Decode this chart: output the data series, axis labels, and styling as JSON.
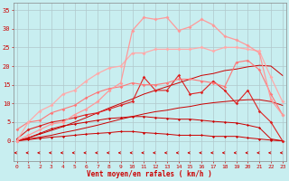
{
  "xlabel": "Vent moyen/en rafales ( km/h )",
  "background_color": "#c8eef0",
  "grid_color": "#b0c8cc",
  "x_values": [
    0,
    1,
    2,
    3,
    4,
    5,
    6,
    7,
    8,
    9,
    10,
    11,
    12,
    13,
    14,
    15,
    16,
    17,
    18,
    19,
    20,
    21,
    22,
    23
  ],
  "series": [
    {
      "color": "#cc0000",
      "linewidth": 0.7,
      "marker": "D",
      "markersize": 1.5,
      "values": [
        0,
        0.3,
        0.7,
        1.0,
        1.2,
        1.5,
        1.8,
        2.0,
        2.2,
        2.5,
        2.5,
        2.2,
        2.0,
        1.8,
        1.5,
        1.5,
        1.5,
        1.2,
        1.2,
        1.2,
        0.8,
        0.5,
        0.2,
        0
      ]
    },
    {
      "color": "#cc0000",
      "linewidth": 0.7,
      "marker": "D",
      "markersize": 1.5,
      "values": [
        0,
        0.8,
        2.0,
        3.2,
        4.0,
        4.5,
        5.0,
        5.5,
        6.0,
        6.2,
        6.5,
        6.5,
        6.2,
        6.0,
        5.8,
        5.8,
        5.5,
        5.2,
        5.0,
        4.8,
        4.2,
        3.5,
        0.5,
        0
      ]
    },
    {
      "color": "#cc0000",
      "linewidth": 0.7,
      "marker": null,
      "markersize": 0,
      "values": [
        0,
        0.5,
        1.0,
        1.5,
        2.2,
        2.8,
        3.5,
        4.2,
        5.0,
        5.8,
        6.5,
        7.2,
        7.8,
        8.2,
        8.8,
        9.2,
        9.8,
        10.2,
        10.5,
        10.8,
        11.0,
        11.0,
        10.5,
        9.5
      ]
    },
    {
      "color": "#cc0000",
      "linewidth": 0.7,
      "marker": null,
      "markersize": 0,
      "values": [
        0,
        0.8,
        1.8,
        2.8,
        3.8,
        5.0,
        6.2,
        7.5,
        8.8,
        10.0,
        11.2,
        12.5,
        13.5,
        14.5,
        15.5,
        16.5,
        17.5,
        18.0,
        18.8,
        19.2,
        19.8,
        20.2,
        20.0,
        17.5
      ]
    },
    {
      "color": "#dd2222",
      "linewidth": 0.8,
      "marker": "D",
      "markersize": 1.8,
      "values": [
        0.5,
        3.0,
        4.0,
        5.0,
        5.5,
        6.2,
        7.0,
        7.5,
        8.5,
        9.5,
        10.5,
        17.0,
        13.5,
        13.5,
        17.5,
        12.5,
        13.0,
        16.0,
        13.5,
        10.0,
        13.5,
        8.0,
        5.0,
        0
      ]
    },
    {
      "color": "#ff7777",
      "linewidth": 0.8,
      "marker": "D",
      "markersize": 1.8,
      "values": [
        3.0,
        5.0,
        5.5,
        7.5,
        8.5,
        9.5,
        11.5,
        13.0,
        14.0,
        14.5,
        15.5,
        15.0,
        15.0,
        15.5,
        16.5,
        16.5,
        16.0,
        15.5,
        14.5,
        21.0,
        21.5,
        19.0,
        12.5,
        7.0
      ]
    },
    {
      "color": "#ffaaaa",
      "linewidth": 0.9,
      "marker": "D",
      "markersize": 2.0,
      "values": [
        0,
        5.0,
        8.0,
        9.5,
        12.5,
        13.5,
        16.0,
        18.0,
        19.5,
        20.0,
        23.5,
        23.5,
        24.5,
        24.5,
        24.5,
        24.5,
        25.0,
        24.0,
        25.0,
        25.0,
        24.5,
        24.0,
        17.0,
        10.5
      ]
    },
    {
      "color": "#ff9999",
      "linewidth": 0.9,
      "marker": "D",
      "markersize": 2.0,
      "values": [
        0,
        1.5,
        3.0,
        4.5,
        5.0,
        7.0,
        8.5,
        10.5,
        13.5,
        15.5,
        29.5,
        33.0,
        32.5,
        33.0,
        29.5,
        30.5,
        32.5,
        31.0,
        28.0,
        27.0,
        25.5,
        23.5,
        11.0,
        7.0
      ]
    }
  ],
  "arrow_color": "#cc0000",
  "ylim": [
    -5.5,
    37
  ],
  "xlim": [
    -0.3,
    23.3
  ],
  "yticks": [
    0,
    5,
    10,
    15,
    20,
    25,
    30,
    35
  ],
  "xticks": [
    0,
    1,
    2,
    3,
    4,
    5,
    6,
    7,
    8,
    9,
    10,
    11,
    12,
    13,
    14,
    15,
    16,
    17,
    18,
    19,
    20,
    21,
    22,
    23
  ]
}
